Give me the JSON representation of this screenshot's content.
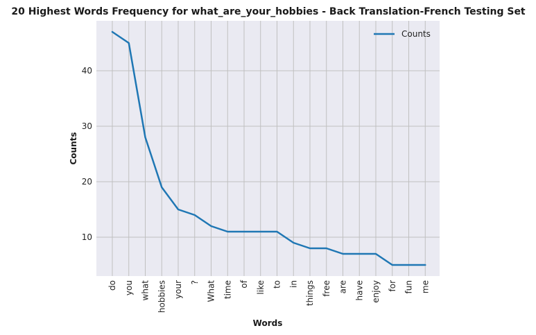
{
  "chart_data": {
    "type": "line",
    "title": "20 Highest Words Frequency for what_are_your_hobbies - Back Translation-French Testing Set",
    "xlabel": "Words",
    "ylabel": "Counts",
    "categories": [
      "do",
      "you",
      "what",
      "hobbies",
      "your",
      "?",
      "What",
      "time",
      "of",
      "like",
      "to",
      "in",
      "things",
      "free",
      "are",
      "have",
      "enjoy",
      "for",
      "fun",
      "me"
    ],
    "series": [
      {
        "name": "Counts",
        "values": [
          47,
          45,
          28,
          19,
          15,
          14,
          12,
          11,
          11,
          11,
          11,
          9,
          8,
          8,
          7,
          7,
          7,
          5,
          5,
          5
        ],
        "color": "#1f77b4"
      }
    ],
    "yticks": [
      10,
      20,
      30,
      40
    ],
    "ylim": [
      3,
      49
    ],
    "grid": true,
    "legend": "top-right",
    "background": "#eaeaf2",
    "grid_color": "#c0c0c0"
  }
}
